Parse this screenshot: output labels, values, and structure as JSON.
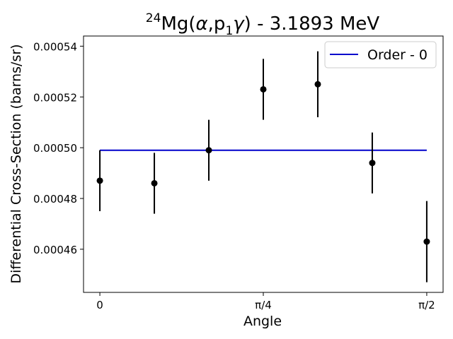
{
  "chart_data": {
    "type": "scatter",
    "title": {
      "sup": "24",
      "pre": "Mg(",
      "alpha": "α",
      "mid": ",p",
      "sub": "1",
      "gamma": "γ",
      "post": ") - 3.1893 MeV"
    },
    "xlabel": "Angle",
    "ylabel": "Differential Cross-Section (barns/sr)",
    "xlim": [
      -0.0785,
      1.6493
    ],
    "ylim": [
      0.000443,
      0.000544
    ],
    "xticks": [
      {
        "value": 0,
        "label": "0"
      },
      {
        "value": 0.7854,
        "label": "π/4"
      },
      {
        "value": 1.5708,
        "label": "π/2"
      }
    ],
    "yticks": [
      {
        "value": 0.00046,
        "label": "0.00046"
      },
      {
        "value": 0.00048,
        "label": "0.00048"
      },
      {
        "value": 0.0005,
        "label": "0.00050"
      },
      {
        "value": 0.00052,
        "label": "0.00052"
      },
      {
        "value": 0.00054,
        "label": "0.00054"
      }
    ],
    "points": [
      {
        "x": 0.0,
        "y": 0.000487,
        "err": 1.2e-05
      },
      {
        "x": 0.2618,
        "y": 0.000486,
        "err": 1.2e-05
      },
      {
        "x": 0.5236,
        "y": 0.000499,
        "err": 1.2e-05
      },
      {
        "x": 0.7854,
        "y": 0.000523,
        "err": 1.2e-05
      },
      {
        "x": 1.0472,
        "y": 0.000525,
        "err": 1.3e-05
      },
      {
        "x": 1.309,
        "y": 0.000494,
        "err": 1.2e-05
      },
      {
        "x": 1.5708,
        "y": 0.000463,
        "err": 1.6e-05
      }
    ],
    "fit": {
      "name": "Order - 0",
      "color": "#0000cc",
      "x": [
        0,
        1.5708
      ],
      "y": [
        0.000499,
        0.000499
      ]
    },
    "marker_color": "#000000",
    "grid": false,
    "legend_position": "top-right"
  }
}
